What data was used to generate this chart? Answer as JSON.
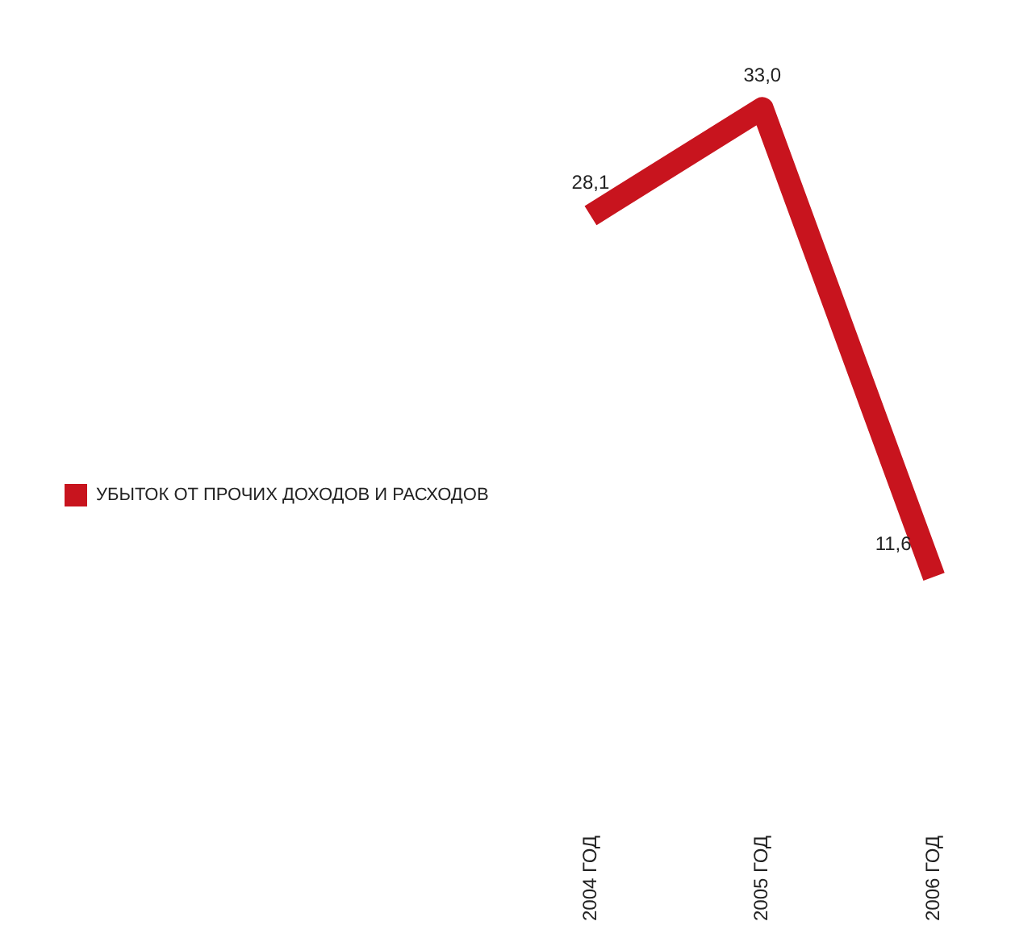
{
  "chart_data": {
    "type": "line",
    "categories": [
      "2004 ГОД",
      "2005 ГОД",
      "2006 ГОД"
    ],
    "series": [
      {
        "name": "УБЫТОК ОТ ПРОЧИХ ДОХОДОВ И РАСХОДОВ",
        "color": "#c8141e",
        "values": [
          28.1,
          33.0,
          11.6
        ],
        "value_labels": [
          "28,1",
          "33,0",
          "11,6"
        ]
      }
    ],
    "legend": "left",
    "grid": false
  }
}
